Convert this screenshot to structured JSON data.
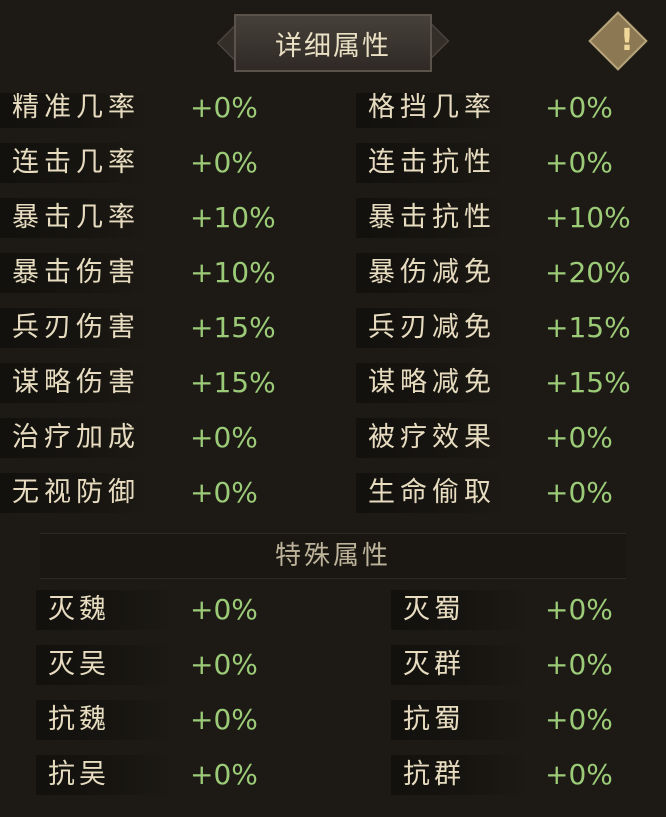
{
  "header": {
    "title": "详细属性",
    "info_icon": "exclamation-diamond-icon",
    "info_glyph": "!"
  },
  "colors": {
    "label": "#e7dcc0",
    "value": "#9ccb78",
    "background": "#1d1a15"
  },
  "attributes": [
    {
      "left_label": "精准几率",
      "left_value": "+0%",
      "right_label": "格挡几率",
      "right_value": "+0%"
    },
    {
      "left_label": "连击几率",
      "left_value": "+0%",
      "right_label": "连击抗性",
      "right_value": "+0%"
    },
    {
      "left_label": "暴击几率",
      "left_value": "+10%",
      "right_label": "暴击抗性",
      "right_value": "+10%"
    },
    {
      "left_label": "暴击伤害",
      "left_value": "+10%",
      "right_label": "暴伤减免",
      "right_value": "+20%"
    },
    {
      "left_label": "兵刃伤害",
      "left_value": "+15%",
      "right_label": "兵刃减免",
      "right_value": "+15%"
    },
    {
      "left_label": "谋略伤害",
      "left_value": "+15%",
      "right_label": "谋略减免",
      "right_value": "+15%"
    },
    {
      "left_label": "治疗加成",
      "left_value": "+0%",
      "right_label": "被疗效果",
      "right_value": "+0%"
    },
    {
      "left_label": "无视防御",
      "left_value": "+0%",
      "right_label": "生命偷取",
      "right_value": "+0%"
    }
  ],
  "special": {
    "title": "特殊属性",
    "rows": [
      {
        "left_label": "灭魏",
        "left_value": "+0%",
        "right_label": "灭蜀",
        "right_value": "+0%"
      },
      {
        "left_label": "灭吴",
        "left_value": "+0%",
        "right_label": "灭群",
        "right_value": "+0%"
      },
      {
        "left_label": "抗魏",
        "left_value": "+0%",
        "right_label": "抗蜀",
        "right_value": "+0%"
      },
      {
        "left_label": "抗吴",
        "left_value": "+0%",
        "right_label": "抗群",
        "right_value": "+0%"
      }
    ]
  }
}
